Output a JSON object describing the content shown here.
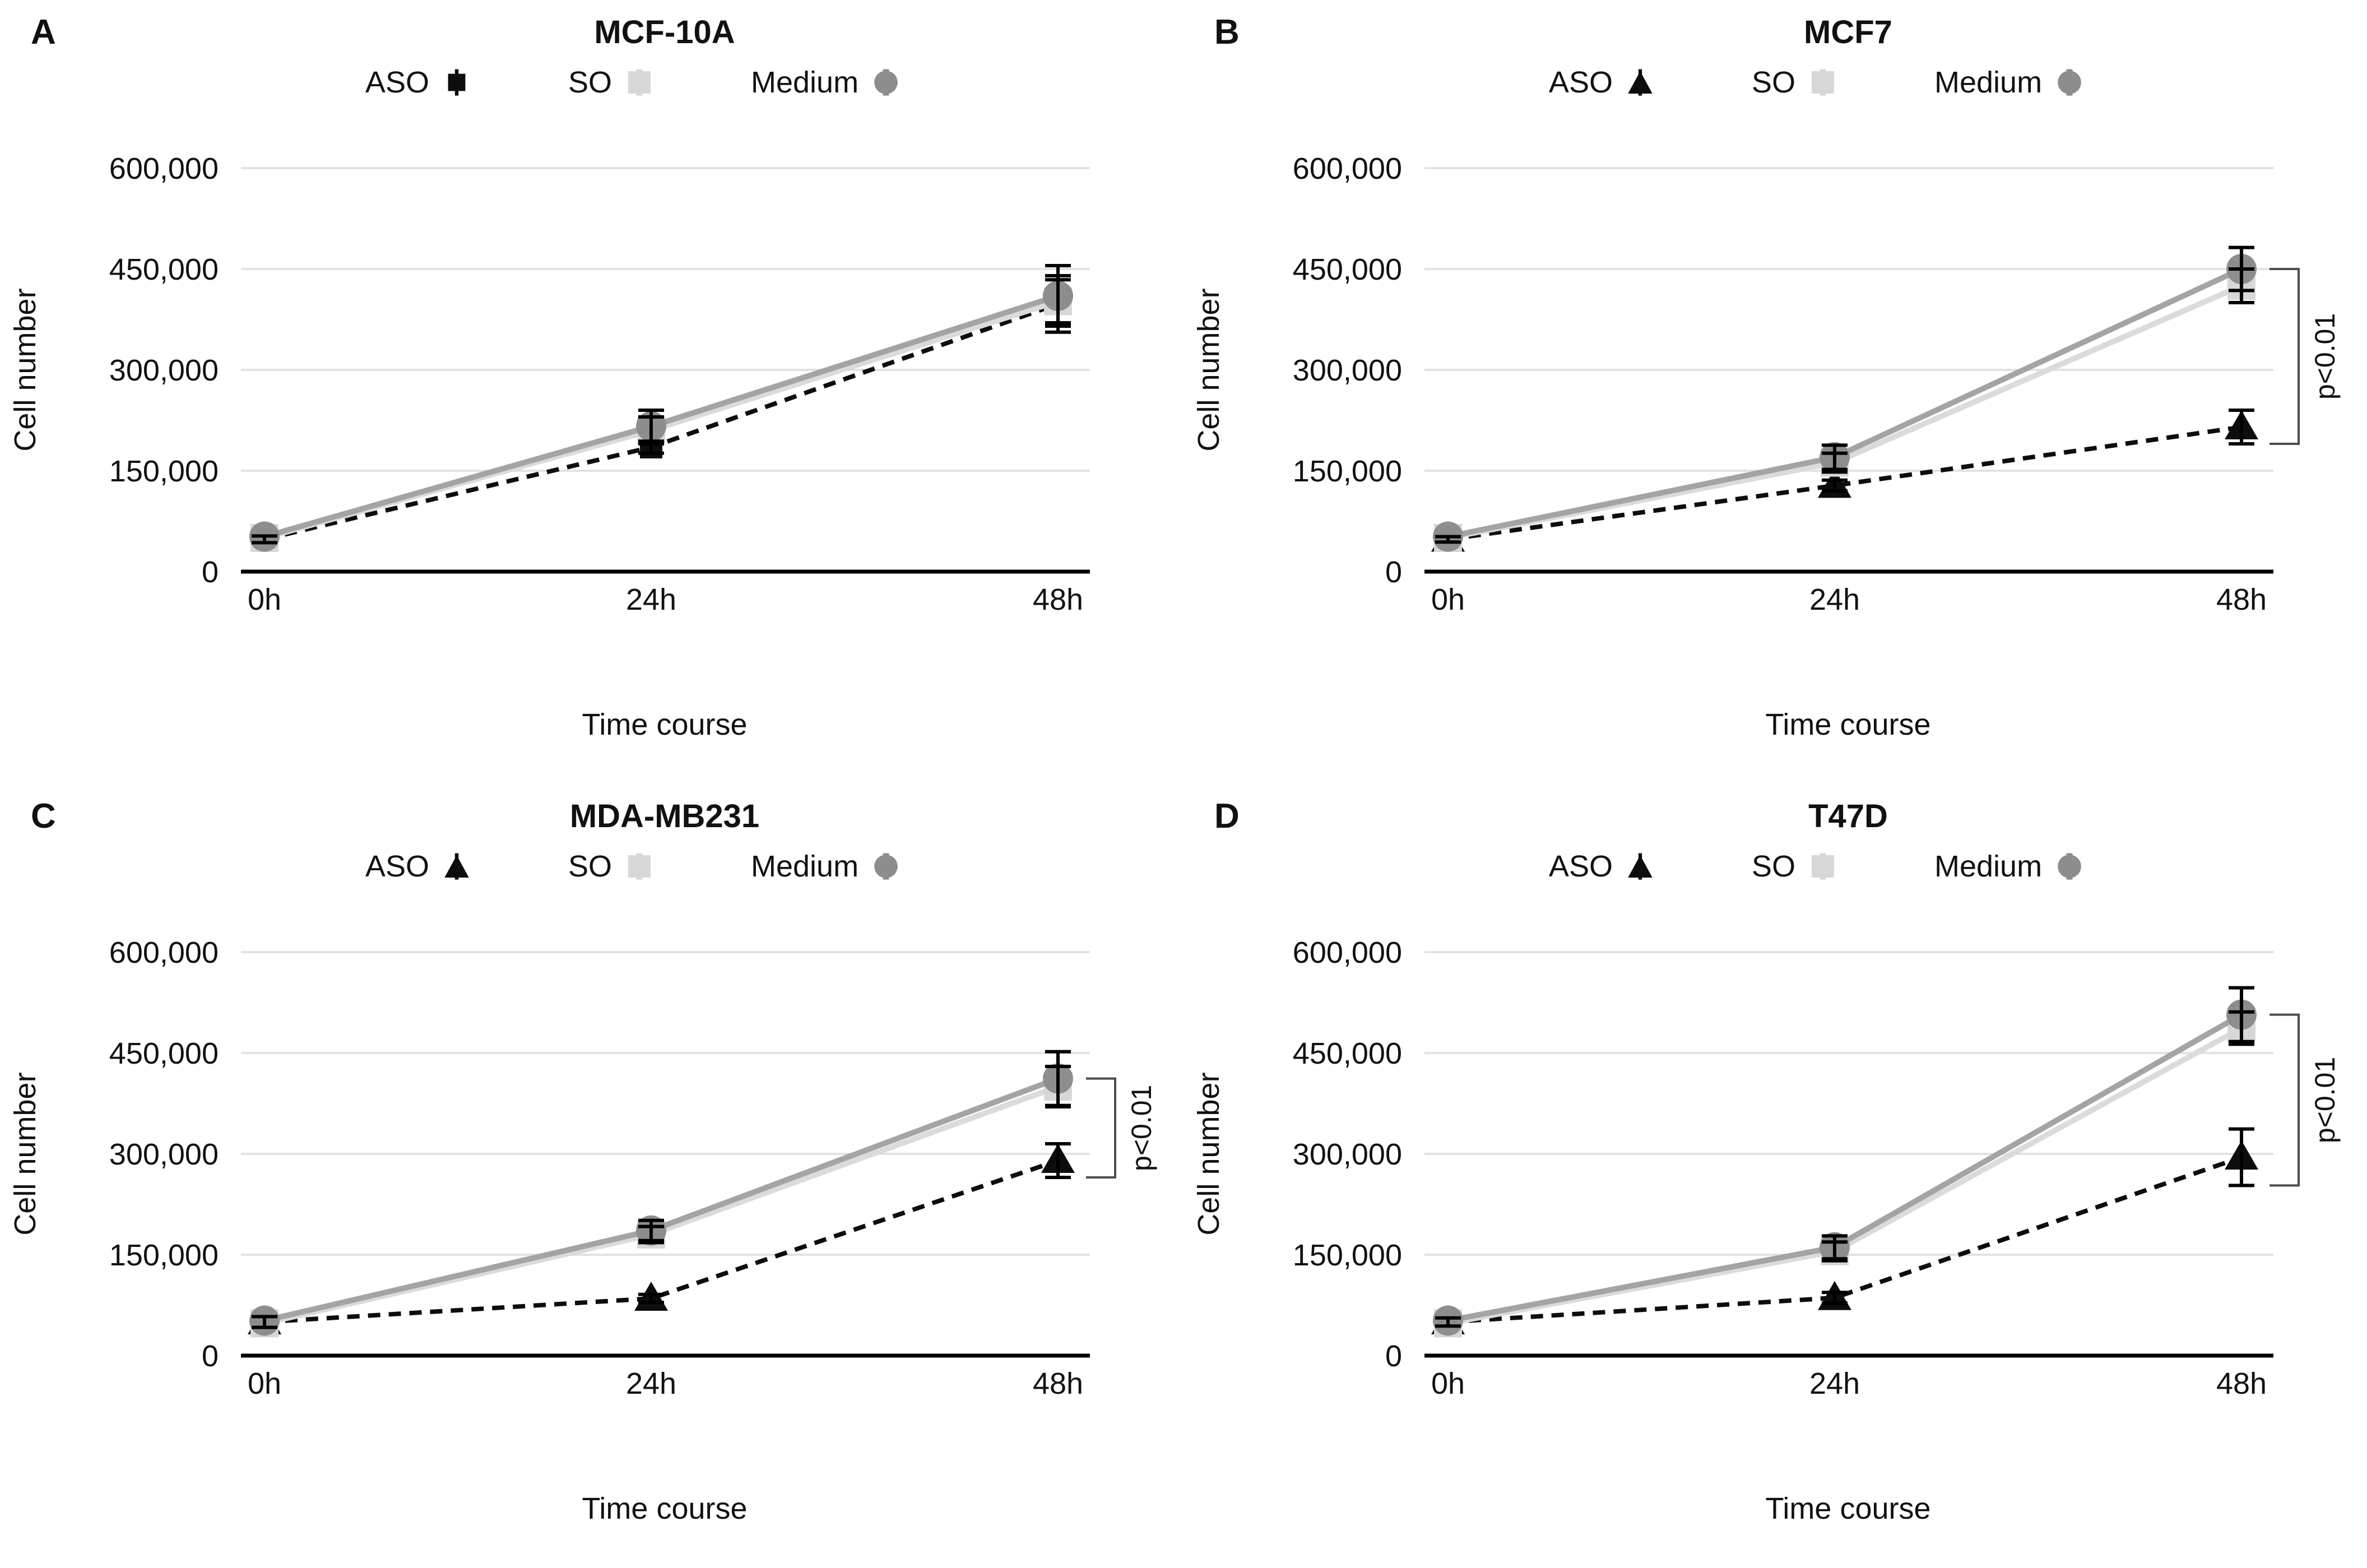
{
  "figure": {
    "background": "#ffffff",
    "panel_letters": [
      "A",
      "B",
      "C",
      "D"
    ]
  },
  "style": {
    "gridline_color": "#e2e2e2",
    "axis_color": "#000000",
    "bracket_color": "#4d4d4d",
    "text_color": "#111111",
    "error_bar_color": "#000000"
  },
  "chart_data": [
    {
      "type": "line",
      "letter": "A",
      "title": "MCF-10A",
      "xlabel": "Time course",
      "ylabel": "Cell number",
      "x": [
        "0h",
        "24h",
        "48h"
      ],
      "ylim": [
        0,
        600000
      ],
      "grid": true,
      "legend_position": "top",
      "y_ticks": [
        {
          "value": 600000,
          "label": "600,000"
        },
        {
          "value": 450000,
          "label": "450,000"
        },
        {
          "value": 300000,
          "label": "300,000"
        },
        {
          "value": 150000,
          "label": "150,000"
        },
        {
          "value": 0,
          "label": "0"
        }
      ],
      "series": [
        {
          "name": "ASO",
          "marker": "black-square",
          "line_style": "dashed",
          "line_color": "#0d0d0d",
          "marker_color": "#0d0d0d",
          "values": [
            48000,
            185000,
            398000
          ],
          "errors": [
            5000,
            9000,
            42000
          ]
        },
        {
          "name": "SO",
          "marker": "light-gray-square",
          "line_style": "solid",
          "line_color": "#dbdbdb",
          "marker_color": "#d7d7d7",
          "values": [
            50000,
            210000,
            402000
          ],
          "errors": [
            0,
            20000,
            32000
          ]
        },
        {
          "name": "Medium",
          "marker": "gray-circle",
          "line_style": "solid",
          "line_color": "#a4a4a4",
          "marker_color": "#8d8d8d",
          "values": [
            52000,
            216000,
            410000
          ],
          "errors": [
            0,
            24000,
            45000
          ]
        }
      ],
      "annotation": null
    },
    {
      "type": "line",
      "letter": "B",
      "title": "MCF7",
      "xlabel": "Time course",
      "ylabel": "Cell number",
      "x": [
        "0h",
        "24h",
        "48h"
      ],
      "ylim": [
        0,
        600000
      ],
      "grid": true,
      "legend_position": "top",
      "y_ticks": [
        {
          "value": 600000,
          "label": "600,000"
        },
        {
          "value": 450000,
          "label": "450,000"
        },
        {
          "value": 300000,
          "label": "300,000"
        },
        {
          "value": 150000,
          "label": "150,000"
        },
        {
          "value": 0,
          "label": "0"
        }
      ],
      "series": [
        {
          "name": "ASO",
          "marker": "black-triangle",
          "line_style": "dashed",
          "line_color": "#0d0d0d",
          "marker_color": "#0d0d0d",
          "values": [
            48000,
            128000,
            215000
          ],
          "errors": [
            4000,
            8000,
            25000
          ]
        },
        {
          "name": "SO",
          "marker": "light-gray-square",
          "line_style": "solid",
          "line_color": "#dbdbdb",
          "marker_color": "#d7d7d7",
          "values": [
            50000,
            162000,
            425000
          ],
          "errors": [
            0,
            14000,
            25000
          ]
        },
        {
          "name": "Medium",
          "marker": "gray-circle",
          "line_style": "solid",
          "line_color": "#a4a4a4",
          "marker_color": "#8d8d8d",
          "values": [
            52000,
            170000,
            450000
          ],
          "errors": [
            0,
            18000,
            32000
          ]
        }
      ],
      "annotation": {
        "label": "p<0.01",
        "x": "48h",
        "from_series": "Medium",
        "to_series": "ASO"
      }
    },
    {
      "type": "line",
      "letter": "C",
      "title": "MDA-MB231",
      "xlabel": "Time course",
      "ylabel": "Cell number",
      "x": [
        "0h",
        "24h",
        "48h"
      ],
      "ylim": [
        0,
        600000
      ],
      "grid": true,
      "legend_position": "top",
      "y_ticks": [
        {
          "value": 600000,
          "label": "600,000"
        },
        {
          "value": 450000,
          "label": "450,000"
        },
        {
          "value": 300000,
          "label": "300,000"
        },
        {
          "value": 150000,
          "label": "150,000"
        },
        {
          "value": 0,
          "label": "0"
        }
      ],
      "series": [
        {
          "name": "ASO",
          "marker": "black-triangle",
          "line_style": "dashed",
          "line_color": "#0d0d0d",
          "marker_color": "#0d0d0d",
          "values": [
            50000,
            85000,
            290000
          ],
          "errors": [
            8000,
            6000,
            25000
          ]
        },
        {
          "name": "SO",
          "marker": "light-gray-square",
          "line_style": "solid",
          "line_color": "#dbdbdb",
          "marker_color": "#d7d7d7",
          "values": [
            48000,
            180000,
            400000
          ],
          "errors": [
            0,
            12000,
            30000
          ]
        },
        {
          "name": "Medium",
          "marker": "gray-circle",
          "line_style": "solid",
          "line_color": "#a4a4a4",
          "marker_color": "#8d8d8d",
          "values": [
            52000,
            186000,
            412000
          ],
          "errors": [
            0,
            15000,
            40000
          ]
        }
      ],
      "annotation": {
        "label": "p<0.01",
        "x": "48h",
        "from_series": "Medium",
        "to_series": "ASO"
      }
    },
    {
      "type": "line",
      "letter": "D",
      "title": "T47D",
      "xlabel": "Time course",
      "ylabel": "Cell number",
      "x": [
        "0h",
        "24h",
        "48h"
      ],
      "ylim": [
        0,
        600000
      ],
      "grid": true,
      "legend_position": "top",
      "y_ticks": [
        {
          "value": 600000,
          "label": "600,000"
        },
        {
          "value": 450000,
          "label": "450,000"
        },
        {
          "value": 300000,
          "label": "300,000"
        },
        {
          "value": 150000,
          "label": "150,000"
        },
        {
          "value": 0,
          "label": "0"
        }
      ],
      "series": [
        {
          "name": "ASO",
          "marker": "black-triangle",
          "line_style": "dashed",
          "line_color": "#0d0d0d",
          "marker_color": "#0d0d0d",
          "values": [
            50000,
            86000,
            295000
          ],
          "errors": [
            6000,
            8000,
            42000
          ]
        },
        {
          "name": "SO",
          "marker": "light-gray-square",
          "line_style": "solid",
          "line_color": "#dbdbdb",
          "marker_color": "#d7d7d7",
          "values": [
            48000,
            155000,
            487000
          ],
          "errors": [
            0,
            14000,
            24000
          ]
        },
        {
          "name": "Medium",
          "marker": "gray-circle",
          "line_style": "solid",
          "line_color": "#a4a4a4",
          "marker_color": "#8d8d8d",
          "values": [
            52000,
            161000,
            507000
          ],
          "errors": [
            0,
            17000,
            40000
          ]
        }
      ],
      "annotation": {
        "label": "p<0.01",
        "x": "48h",
        "from_series": "Medium",
        "to_series": "ASO"
      }
    }
  ]
}
